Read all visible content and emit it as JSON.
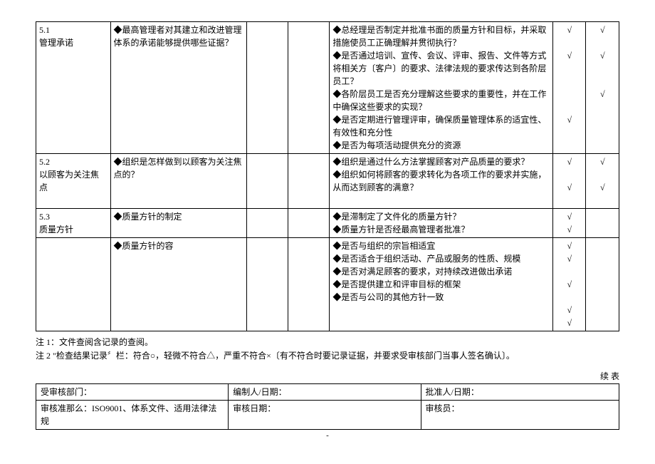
{
  "rows": [
    {
      "id": "5.1\n管理承诺",
      "q1": "◆最高管理者对其建立和改进管理体系的承诺能够提供哪些证据？",
      "q2": [
        "◆总经理是否制定并批准书面的质量方针和目标，并采取措施使员工正确理解并贯彻执行？",
        "◆是否通过培训、宣传、会议、评审、报告、文件等方式将相关方〔客户〕的要求、法律法规的要求传达到各阶层员工？",
        "◆各阶层员工是否充分理解这些要求的重要性，并在工作中确保这些要求的实现？",
        "◆是否定期进行管理评审，确保质量管理体系的适宜性、有效性和充分性",
        "◆是否为每项活动提供充分的资源"
      ],
      "c1": [
        "√",
        "√",
        "",
        "√",
        ""
      ],
      "c2": [
        "√",
        "√",
        "√",
        "",
        ""
      ]
    },
    {
      "id": "5.2\n以顾客为关注焦点",
      "q1": "◆组织是怎样做到以顾客为关注焦点的？",
      "q2": [
        "◆组织是通过什么方法掌握顾客对产品质量的要求？",
        "◆组织如何将顾客的要求转化为各项工作的要求并实施，从而达到顾客的满意？"
      ],
      "c1": [
        "√",
        "√"
      ],
      "c2": [
        "√",
        "√"
      ]
    },
    {
      "id": "5.3\n质量方针",
      "q1": "◆质量方针的制定",
      "q2": [
        "◆是滞制定了文件化的质量方针？",
        "◆质量方针是否经最高管理者批准？"
      ],
      "c1": [
        "√",
        "√"
      ],
      "c2": [
        "",
        ""
      ]
    },
    {
      "id": "",
      "q1": "◆质量方针的容",
      "q2": [
        "◆是否与组织的宗旨相适宜",
        "◆是否适合于组织活动、产品或服务的性质、规模",
        "◆是否对满足顾客的要求，对持续改进做出承诺",
        "◆是否提供建立和评审目标的框架",
        "◆是否与公司的其他方针一致"
      ],
      "c1": [
        "√",
        "√",
        "√",
        "√",
        "√"
      ],
      "c2": [
        "",
        "",
        "",
        "",
        ""
      ]
    }
  ],
  "notes": {
    "n1": "注 1：文件查阅含记录的查阅。",
    "n2": "注 2 \"检查结果记录〞栏：符合○，轻微不符合△，严重不符合×〔有不符合时要记录证据，并要求受审核部门当事人签名确认〕。"
  },
  "continue_label": "续 表",
  "meta": {
    "dept_label": "受审核部门：",
    "compiler_label": "编制人/日期：",
    "approver_label": "批准人/日期：",
    "criteria_label": "审核准那么：ISO9001、体系文件、适用法律法规",
    "audit_date_label": "审核日期：",
    "auditor_label": "审核员："
  },
  "dash": "-"
}
